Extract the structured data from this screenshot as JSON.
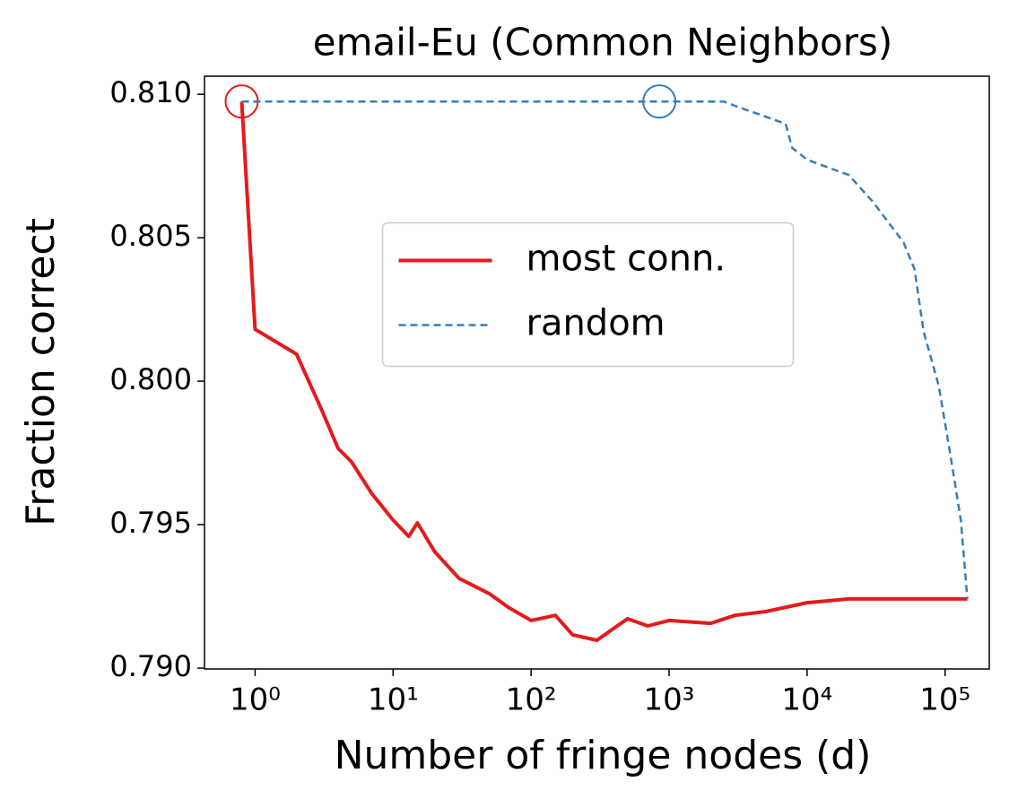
{
  "chart_data": {
    "type": "line",
    "title": "email-Eu (Common Neighbors)",
    "xlabel": "Number of fringe nodes (d)",
    "ylabel": "Fraction correct",
    "xscale": "log",
    "xlim": [
      0.43,
      209000
    ],
    "ylim": [
      0.78997,
      0.81063
    ],
    "xticks": [
      {
        "value": 1,
        "label": "10⁰"
      },
      {
        "value": 10,
        "label": "10¹"
      },
      {
        "value": 100,
        "label": "10²"
      },
      {
        "value": 1000,
        "label": "10³"
      },
      {
        "value": 10000,
        "label": "10⁴"
      },
      {
        "value": 100000,
        "label": "10⁵"
      }
    ],
    "yticks": [
      {
        "value": 0.79,
        "label": "0.790"
      },
      {
        "value": 0.795,
        "label": "0.795"
      },
      {
        "value": 0.8,
        "label": "0.800"
      },
      {
        "value": 0.805,
        "label": "0.805"
      },
      {
        "value": 0.81,
        "label": "0.810"
      }
    ],
    "legend": "center",
    "series": [
      {
        "name": "most conn.",
        "color": "#e41a1c",
        "style": "solid",
        "x": [
          0.8,
          1,
          2,
          3,
          4,
          5,
          7,
          10,
          13,
          15,
          20,
          30,
          50,
          70,
          100,
          150,
          200,
          300,
          500,
          700,
          1000,
          2000,
          3000,
          5000,
          10000,
          20000,
          145000
        ],
        "values": [
          0.80975,
          0.80181,
          0.80094,
          0.79906,
          0.79766,
          0.79719,
          0.79609,
          0.79516,
          0.79459,
          0.79506,
          0.79406,
          0.79313,
          0.79259,
          0.79209,
          0.79166,
          0.79184,
          0.79116,
          0.79097,
          0.79172,
          0.79147,
          0.79166,
          0.79156,
          0.79184,
          0.79197,
          0.79228,
          0.79241,
          0.79241
        ],
        "highlight": {
          "x": 0.8,
          "y": 0.80975
        }
      },
      {
        "name": "random",
        "color": "#377eb8",
        "style": "dashed",
        "x": [
          0.8,
          2500,
          3000,
          5000,
          7000,
          7800,
          10000,
          20000,
          30000,
          50000,
          60000,
          70000,
          90000,
          110000,
          130000,
          145000
        ],
        "values": [
          0.80975,
          0.80975,
          0.8096,
          0.80922,
          0.80897,
          0.80813,
          0.80772,
          0.80719,
          0.80625,
          0.80484,
          0.80391,
          0.80172,
          0.79984,
          0.79734,
          0.79516,
          0.79241
        ],
        "highlight": {
          "x": 850,
          "y": 0.80975
        }
      }
    ]
  }
}
